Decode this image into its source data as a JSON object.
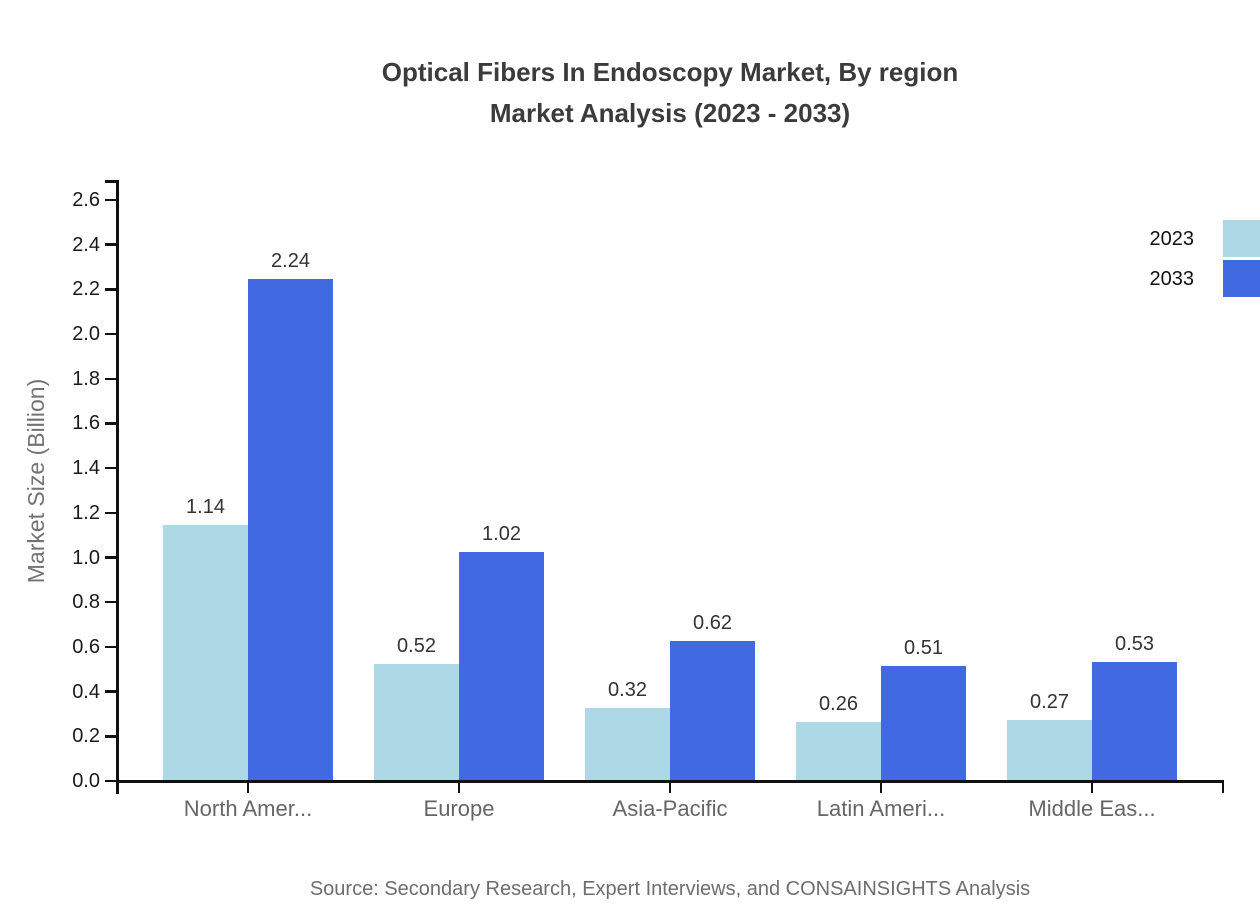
{
  "title": {
    "line1": "Optical Fibers In Endoscopy Market, By region",
    "line2": "Market Analysis (2023 - 2033)"
  },
  "source": "Source: Secondary Research, Expert Interviews, and CONSAINSIGHTS Analysis",
  "chart_data": {
    "type": "bar",
    "categories": [
      "North Amer...",
      "Europe",
      "Asia-Pacific",
      "Latin Ameri...",
      "Middle Eas..."
    ],
    "series": [
      {
        "name": "2023",
        "color": "#ADD8E6",
        "values": [
          1.14,
          0.52,
          0.32,
          0.26,
          0.27
        ]
      },
      {
        "name": "2033",
        "color": "#4169E1",
        "values": [
          2.24,
          1.02,
          0.62,
          0.51,
          0.53
        ]
      }
    ],
    "title": "Optical Fibers In Endoscopy Market, By region Market Analysis (2023 - 2033)",
    "xlabel": "",
    "ylabel": "Market Size (Billion)",
    "ylim": [
      0.0,
      2.6
    ],
    "ytick_step": 0.2,
    "value_label_decimals": 2,
    "grid": false,
    "legend_position": "top-right",
    "colors": {
      "axis": "#111111",
      "title_text": "#3b3b3b",
      "tick_label": "#1a1a1a",
      "category_label": "#666666",
      "value_label": "#333333",
      "muted_text": "#6e6e6e"
    }
  }
}
